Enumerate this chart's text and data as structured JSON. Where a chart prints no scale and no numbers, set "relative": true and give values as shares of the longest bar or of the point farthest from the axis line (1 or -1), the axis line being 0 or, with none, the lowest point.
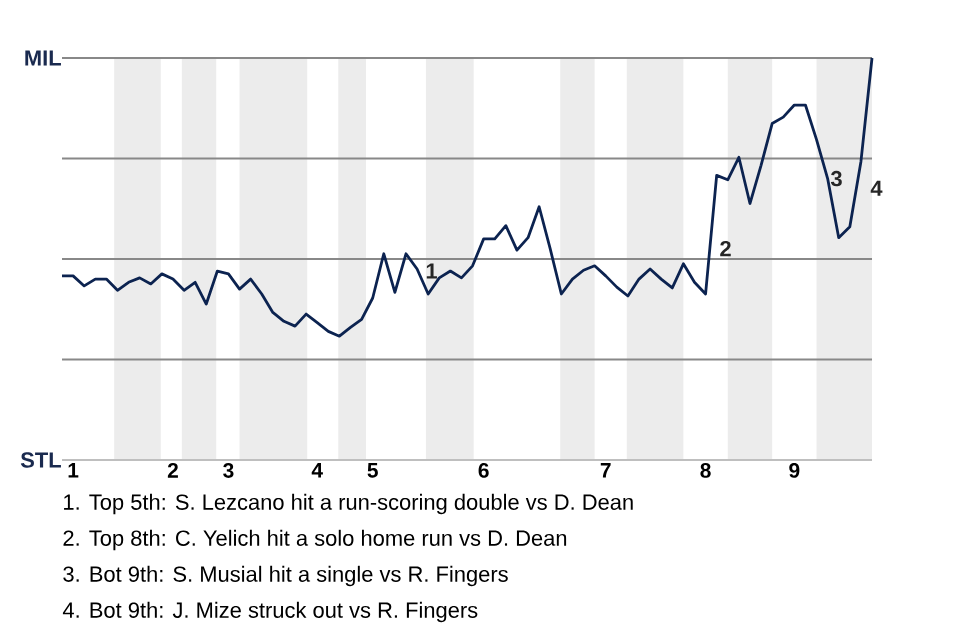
{
  "chart_data": {
    "type": "line",
    "relative": true,
    "categories": [
      null,
      "1",
      null,
      null,
      null,
      null,
      null,
      null,
      null,
      null,
      "2",
      null,
      null,
      null,
      null,
      "3",
      null,
      null,
      null,
      null,
      null,
      null,
      null,
      "4",
      null,
      null,
      null,
      null,
      "5",
      null,
      null,
      null,
      null,
      null,
      null,
      null,
      null,
      null,
      "6",
      null,
      null,
      null,
      null,
      null,
      null,
      null,
      null,
      null,
      null,
      "7",
      null,
      null,
      null,
      null,
      null,
      null,
      null,
      null,
      "8",
      null,
      null,
      null,
      null,
      null,
      null,
      null,
      "9",
      null,
      null,
      null,
      null,
      null,
      null,
      null
    ],
    "values": [
      0.458,
      0.458,
      0.433,
      0.45,
      0.45,
      0.422,
      0.442,
      0.453,
      0.438,
      0.463,
      0.45,
      0.422,
      0.442,
      0.388,
      0.47,
      0.463,
      0.425,
      0.45,
      0.413,
      0.367,
      0.345,
      0.333,
      0.363,
      0.342,
      0.32,
      0.308,
      0.33,
      0.35,
      0.403,
      0.513,
      0.417,
      0.513,
      0.475,
      0.413,
      0.453,
      0.47,
      0.453,
      0.483,
      0.55,
      0.55,
      0.583,
      0.522,
      0.553,
      0.63,
      0.525,
      0.413,
      0.45,
      0.472,
      0.483,
      0.458,
      0.43,
      0.408,
      0.45,
      0.475,
      0.45,
      0.428,
      0.488,
      0.442,
      0.413,
      0.708,
      0.697,
      0.753,
      0.638,
      0.733,
      0.837,
      0.853,
      0.883,
      0.883,
      0.797,
      0.7,
      0.553,
      0.58,
      0.742,
      1
    ],
    "color": "#0c2350",
    "ref_lines": [
      {
        "axis": "y",
        "value": 0.25,
        "color": "#888888"
      },
      {
        "axis": "y",
        "value": 0.5,
        "color": "#888888"
      },
      {
        "axis": "y",
        "value": 0.75,
        "color": "#888888"
      },
      {
        "axis": "y",
        "value": 1,
        "color": "#888888"
      }
    ],
    "annotations": [
      "MIL",
      "STL",
      "1",
      "2",
      "3",
      "4",
      "1. Top 5th: S. Lezcano hit a run-scoring double vs D. Dean",
      "2. Top 8th: C. Yelich hit a solo home run vs D. Dean",
      "3. Bot 9th: S. Musial hit a single vs R. Fingers",
      "4. Bot 9th: J. Mize struck out vs R. Fingers"
    ]
  }
}
